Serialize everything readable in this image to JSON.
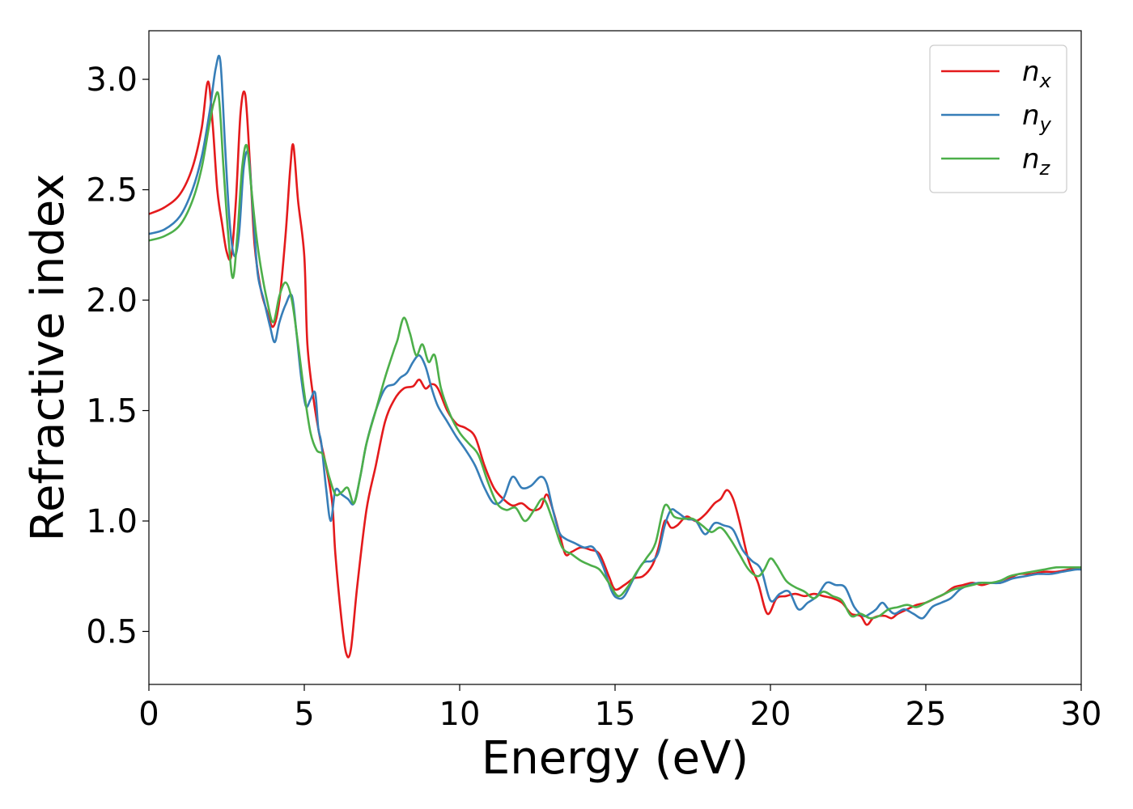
{
  "chart_data": {
    "type": "line",
    "title": "",
    "xlabel": "Energy (eV)",
    "ylabel": "Refractive index",
    "xlim": [
      0,
      30
    ],
    "ylim": [
      0.26,
      3.22
    ],
    "xticks": [
      0,
      5,
      10,
      15,
      20,
      25,
      30
    ],
    "xtick_labels": [
      "0",
      "5",
      "10",
      "15",
      "20",
      "25",
      "30"
    ],
    "yticks": [
      0.5,
      1.0,
      1.5,
      2.0,
      2.5,
      3.0
    ],
    "ytick_labels": [
      "0.5",
      "1.0",
      "1.5",
      "2.0",
      "2.5",
      "3.0"
    ],
    "grid": false,
    "legend_position": "top-right",
    "series": [
      {
        "name": "n",
        "subscript": "x",
        "color": "#e41a1c",
        "x": [
          0,
          0.5,
          1.0,
          1.4,
          1.7,
          1.9,
          2.05,
          2.2,
          2.35,
          2.5,
          2.65,
          2.8,
          2.95,
          3.1,
          3.25,
          3.4,
          3.6,
          3.8,
          4.0,
          4.2,
          4.4,
          4.55,
          4.65,
          4.8,
          5.0,
          5.1,
          5.3,
          5.5,
          5.7,
          5.9,
          6.0,
          6.2,
          6.35,
          6.5,
          6.7,
          7.0,
          7.3,
          7.6,
          7.9,
          8.2,
          8.5,
          8.7,
          8.9,
          9.1,
          9.3,
          9.6,
          9.9,
          10.2,
          10.5,
          10.8,
          11.1,
          11.4,
          11.7,
          12.0,
          12.3,
          12.6,
          12.8,
          13.0,
          13.2,
          13.4,
          13.6,
          13.9,
          14.2,
          14.5,
          14.8,
          15.0,
          15.3,
          15.6,
          15.9,
          16.2,
          16.4,
          16.6,
          16.8,
          17.0,
          17.3,
          17.6,
          17.9,
          18.2,
          18.4,
          18.6,
          18.8,
          19.0,
          19.3,
          19.6,
          19.9,
          20.2,
          20.5,
          20.8,
          21.1,
          21.4,
          21.7,
          22.0,
          22.3,
          22.6,
          22.9,
          23.1,
          23.3,
          23.5,
          23.7,
          23.9,
          24.1,
          24.4,
          24.7,
          25.0,
          25.3,
          25.6,
          25.9,
          26.2,
          26.5,
          26.8,
          27.1,
          27.4,
          27.7,
          28.0,
          28.4,
          28.8,
          29.2,
          29.6,
          30.0
        ],
        "values": [
          2.39,
          2.42,
          2.48,
          2.6,
          2.78,
          2.99,
          2.8,
          2.5,
          2.35,
          2.22,
          2.2,
          2.45,
          2.85,
          2.93,
          2.62,
          2.25,
          2.05,
          1.95,
          1.88,
          2.0,
          2.3,
          2.6,
          2.7,
          2.45,
          2.2,
          1.8,
          1.55,
          1.38,
          1.25,
          1.08,
          0.85,
          0.55,
          0.4,
          0.42,
          0.7,
          1.05,
          1.25,
          1.45,
          1.55,
          1.6,
          1.61,
          1.64,
          1.6,
          1.62,
          1.6,
          1.5,
          1.44,
          1.42,
          1.38,
          1.25,
          1.15,
          1.1,
          1.07,
          1.08,
          1.05,
          1.06,
          1.12,
          1.05,
          0.95,
          0.85,
          0.86,
          0.88,
          0.87,
          0.85,
          0.75,
          0.69,
          0.71,
          0.74,
          0.75,
          0.8,
          0.88,
          1.0,
          0.97,
          0.98,
          1.02,
          1.0,
          1.03,
          1.08,
          1.1,
          1.14,
          1.1,
          1.0,
          0.82,
          0.72,
          0.58,
          0.65,
          0.66,
          0.67,
          0.66,
          0.67,
          0.66,
          0.65,
          0.63,
          0.58,
          0.57,
          0.53,
          0.56,
          0.57,
          0.57,
          0.56,
          0.58,
          0.6,
          0.62,
          0.63,
          0.65,
          0.67,
          0.7,
          0.71,
          0.72,
          0.71,
          0.72,
          0.72,
          0.74,
          0.76,
          0.76,
          0.77,
          0.77,
          0.78,
          0.79
        ]
      },
      {
        "name": "n",
        "subscript": "y",
        "color": "#377eb8",
        "x": [
          0,
          0.5,
          1.0,
          1.4,
          1.7,
          1.95,
          2.15,
          2.3,
          2.45,
          2.6,
          2.75,
          2.9,
          3.05,
          3.2,
          3.35,
          3.5,
          3.7,
          3.9,
          4.05,
          4.2,
          4.4,
          4.6,
          4.75,
          4.9,
          5.05,
          5.2,
          5.35,
          5.45,
          5.55,
          5.7,
          5.85,
          6.0,
          6.2,
          6.4,
          6.6,
          6.8,
          7.0,
          7.3,
          7.6,
          7.9,
          8.1,
          8.3,
          8.5,
          8.7,
          8.9,
          9.1,
          9.3,
          9.6,
          9.9,
          10.2,
          10.5,
          10.8,
          11.1,
          11.4,
          11.7,
          12.0,
          12.3,
          12.6,
          12.8,
          13.0,
          13.2,
          13.4,
          13.7,
          14.0,
          14.3,
          14.6,
          14.9,
          15.1,
          15.3,
          15.6,
          15.9,
          16.2,
          16.4,
          16.6,
          16.8,
          17.0,
          17.3,
          17.6,
          17.9,
          18.2,
          18.5,
          18.8,
          19.1,
          19.4,
          19.7,
          20.0,
          20.3,
          20.6,
          20.9,
          21.2,
          21.5,
          21.8,
          22.1,
          22.4,
          22.7,
          23.0,
          23.2,
          23.4,
          23.6,
          23.8,
          24.0,
          24.3,
          24.6,
          24.9,
          25.2,
          25.5,
          25.8,
          26.1,
          26.4,
          26.7,
          27.0,
          27.4,
          27.8,
          28.2,
          28.6,
          29.0,
          29.4,
          29.8,
          30.0
        ],
        "values": [
          2.3,
          2.32,
          2.38,
          2.5,
          2.65,
          2.85,
          3.05,
          3.08,
          2.7,
          2.35,
          2.2,
          2.3,
          2.6,
          2.66,
          2.4,
          2.12,
          2.0,
          1.88,
          1.81,
          1.9,
          1.98,
          2.02,
          1.85,
          1.65,
          1.52,
          1.55,
          1.58,
          1.42,
          1.35,
          1.15,
          1.0,
          1.14,
          1.12,
          1.1,
          1.08,
          1.2,
          1.35,
          1.5,
          1.6,
          1.62,
          1.65,
          1.67,
          1.72,
          1.75,
          1.7,
          1.6,
          1.52,
          1.45,
          1.38,
          1.32,
          1.25,
          1.15,
          1.08,
          1.1,
          1.2,
          1.15,
          1.16,
          1.2,
          1.17,
          1.05,
          0.95,
          0.92,
          0.9,
          0.88,
          0.88,
          0.8,
          0.68,
          0.65,
          0.66,
          0.74,
          0.81,
          0.82,
          0.86,
          0.98,
          1.05,
          1.04,
          1.01,
          1.0,
          0.94,
          0.99,
          0.98,
          0.96,
          0.87,
          0.82,
          0.78,
          0.64,
          0.67,
          0.68,
          0.6,
          0.63,
          0.66,
          0.72,
          0.71,
          0.7,
          0.61,
          0.57,
          0.58,
          0.6,
          0.63,
          0.6,
          0.58,
          0.6,
          0.58,
          0.56,
          0.61,
          0.63,
          0.65,
          0.69,
          0.71,
          0.72,
          0.72,
          0.72,
          0.74,
          0.75,
          0.76,
          0.76,
          0.77,
          0.78,
          0.78
        ]
      },
      {
        "name": "n",
        "subscript": "z",
        "color": "#4daf4a",
        "x": [
          0,
          0.5,
          1.0,
          1.4,
          1.7,
          1.95,
          2.1,
          2.25,
          2.4,
          2.55,
          2.7,
          2.85,
          3.0,
          3.15,
          3.3,
          3.45,
          3.6,
          3.8,
          4.0,
          4.2,
          4.4,
          4.6,
          4.8,
          5.0,
          5.2,
          5.4,
          5.6,
          5.8,
          6.0,
          6.2,
          6.4,
          6.6,
          6.8,
          7.0,
          7.3,
          7.6,
          7.9,
          8.0,
          8.2,
          8.4,
          8.6,
          8.8,
          9.0,
          9.2,
          9.4,
          9.7,
          10.0,
          10.3,
          10.6,
          10.9,
          11.2,
          11.5,
          11.8,
          12.1,
          12.4,
          12.7,
          13.0,
          13.3,
          13.6,
          13.9,
          14.2,
          14.5,
          14.8,
          15.1,
          15.4,
          15.7,
          16.0,
          16.3,
          16.6,
          16.9,
          17.2,
          17.5,
          17.8,
          18.1,
          18.4,
          18.7,
          19.0,
          19.3,
          19.6,
          19.8,
          20.0,
          20.2,
          20.5,
          20.8,
          21.1,
          21.4,
          21.7,
          22.0,
          22.3,
          22.6,
          22.9,
          23.2,
          23.5,
          23.8,
          24.1,
          24.4,
          24.7,
          25.0,
          25.3,
          25.6,
          25.9,
          26.2,
          26.5,
          26.8,
          27.1,
          27.4,
          27.7,
          28.0,
          28.4,
          28.8,
          29.2,
          29.6,
          30.0
        ],
        "values": [
          2.27,
          2.29,
          2.34,
          2.45,
          2.6,
          2.8,
          2.9,
          2.92,
          2.6,
          2.3,
          2.1,
          2.3,
          2.6,
          2.7,
          2.5,
          2.3,
          2.15,
          2.0,
          1.9,
          2.02,
          2.08,
          2.0,
          1.8,
          1.58,
          1.4,
          1.32,
          1.3,
          1.2,
          1.12,
          1.13,
          1.15,
          1.08,
          1.2,
          1.35,
          1.5,
          1.65,
          1.78,
          1.82,
          1.92,
          1.85,
          1.75,
          1.8,
          1.72,
          1.75,
          1.6,
          1.48,
          1.4,
          1.35,
          1.3,
          1.18,
          1.08,
          1.05,
          1.06,
          1.0,
          1.05,
          1.1,
          1.0,
          0.88,
          0.85,
          0.82,
          0.8,
          0.78,
          0.72,
          0.66,
          0.7,
          0.77,
          0.83,
          0.9,
          1.07,
          1.02,
          1.01,
          1.01,
          0.98,
          0.95,
          0.97,
          0.92,
          0.85,
          0.78,
          0.75,
          0.78,
          0.83,
          0.8,
          0.73,
          0.7,
          0.68,
          0.65,
          0.68,
          0.66,
          0.64,
          0.57,
          0.58,
          0.56,
          0.57,
          0.6,
          0.61,
          0.62,
          0.61,
          0.63,
          0.65,
          0.67,
          0.69,
          0.7,
          0.71,
          0.72,
          0.72,
          0.73,
          0.75,
          0.76,
          0.77,
          0.78,
          0.79,
          0.79,
          0.79
        ]
      }
    ]
  }
}
